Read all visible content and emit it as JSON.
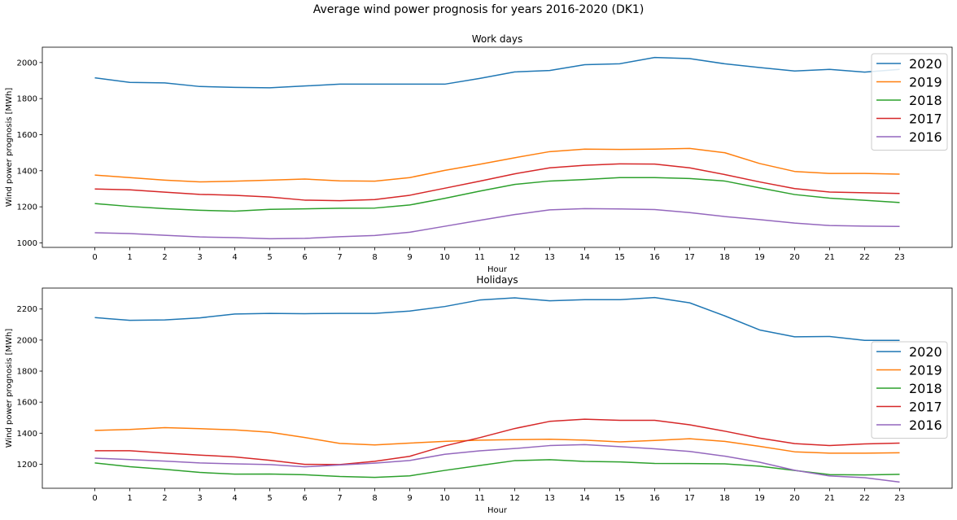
{
  "figure": {
    "suptitle": "Average wind power prognosis for years 2016-2020 (DK1)"
  },
  "chart_data": [
    {
      "type": "line",
      "title": "Work days",
      "xlabel": "Hour",
      "ylabel": "Wind power prognosis [MWh]",
      "x": [
        0,
        1,
        2,
        3,
        4,
        5,
        6,
        7,
        8,
        9,
        10,
        11,
        12,
        13,
        14,
        15,
        16,
        17,
        18,
        19,
        20,
        21,
        22,
        23
      ],
      "xlim": [
        -1.5,
        24.5
      ],
      "ylim": [
        975,
        2085
      ],
      "yticks": [
        1000,
        1200,
        1400,
        1600,
        1800,
        2000
      ],
      "legend_position": "top-right",
      "series": [
        {
          "name": "2020",
          "color": "#1f77b4",
          "values": [
            1915,
            1890,
            1887,
            1867,
            1862,
            1860,
            1870,
            1880,
            1880,
            1880,
            1880,
            1912,
            1948,
            1956,
            1988,
            1993,
            2028,
            2022,
            1993,
            1972,
            1953,
            1962,
            1947,
            1962
          ]
        },
        {
          "name": "2019",
          "color": "#ff7f0e",
          "values": [
            1376,
            1362,
            1348,
            1338,
            1342,
            1348,
            1354,
            1344,
            1342,
            1362,
            1402,
            1436,
            1472,
            1506,
            1520,
            1518,
            1520,
            1524,
            1500,
            1440,
            1396,
            1385,
            1385,
            1381
          ]
        },
        {
          "name": "2018",
          "color": "#2ca02c",
          "values": [
            1218,
            1202,
            1190,
            1181,
            1176,
            1186,
            1189,
            1192,
            1193,
            1210,
            1247,
            1287,
            1324,
            1343,
            1351,
            1362,
            1362,
            1357,
            1343,
            1305,
            1268,
            1248,
            1236,
            1224
          ]
        },
        {
          "name": "2017",
          "color": "#d62728",
          "values": [
            1299,
            1294,
            1281,
            1269,
            1264,
            1254,
            1237,
            1234,
            1240,
            1264,
            1303,
            1342,
            1383,
            1416,
            1430,
            1438,
            1437,
            1416,
            1379,
            1338,
            1301,
            1282,
            1278,
            1274
          ]
        },
        {
          "name": "2016",
          "color": "#9467bd",
          "values": [
            1056,
            1052,
            1042,
            1033,
            1029,
            1023,
            1025,
            1034,
            1041,
            1059,
            1092,
            1125,
            1157,
            1183,
            1190,
            1188,
            1185,
            1168,
            1146,
            1129,
            1110,
            1096,
            1093,
            1091
          ]
        }
      ]
    },
    {
      "type": "line",
      "title": "Holidays",
      "xlabel": "Hour",
      "ylabel": "Wind power prognosis [MWh]",
      "x": [
        0,
        1,
        2,
        3,
        4,
        5,
        6,
        7,
        8,
        9,
        10,
        11,
        12,
        13,
        14,
        15,
        16,
        17,
        18,
        19,
        20,
        21,
        22,
        23
      ],
      "xlim": [
        -1.5,
        24.5
      ],
      "ylim": [
        1045,
        2335
      ],
      "yticks": [
        1200,
        1400,
        1600,
        1800,
        2000,
        2200
      ],
      "legend_position": "center-right",
      "series": [
        {
          "name": "2020",
          "color": "#1f77b4",
          "values": [
            2145,
            2127,
            2130,
            2143,
            2168,
            2172,
            2170,
            2172,
            2172,
            2187,
            2216,
            2258,
            2272,
            2253,
            2260,
            2260,
            2274,
            2240,
            2156,
            2065,
            2021,
            2023,
            1998,
            1998
          ]
        },
        {
          "name": "2019",
          "color": "#ff7f0e",
          "values": [
            1418,
            1424,
            1436,
            1429,
            1421,
            1406,
            1372,
            1334,
            1324,
            1336,
            1347,
            1355,
            1358,
            1361,
            1355,
            1344,
            1353,
            1364,
            1347,
            1315,
            1280,
            1271,
            1271,
            1274
          ]
        },
        {
          "name": "2018",
          "color": "#2ca02c",
          "values": [
            1208,
            1184,
            1167,
            1147,
            1136,
            1137,
            1132,
            1121,
            1115,
            1125,
            1160,
            1192,
            1223,
            1229,
            1218,
            1215,
            1205,
            1204,
            1202,
            1187,
            1160,
            1133,
            1131,
            1135
          ]
        },
        {
          "name": "2017",
          "color": "#d62728",
          "values": [
            1287,
            1287,
            1272,
            1259,
            1247,
            1225,
            1199,
            1198,
            1219,
            1251,
            1318,
            1371,
            1430,
            1476,
            1490,
            1483,
            1483,
            1454,
            1413,
            1368,
            1333,
            1320,
            1331,
            1336
          ]
        },
        {
          "name": "2016",
          "color": "#9467bd",
          "values": [
            1239,
            1230,
            1220,
            1208,
            1202,
            1198,
            1183,
            1195,
            1207,
            1224,
            1264,
            1286,
            1301,
            1320,
            1326,
            1313,
            1299,
            1282,
            1252,
            1213,
            1161,
            1124,
            1113,
            1085
          ]
        }
      ]
    }
  ]
}
